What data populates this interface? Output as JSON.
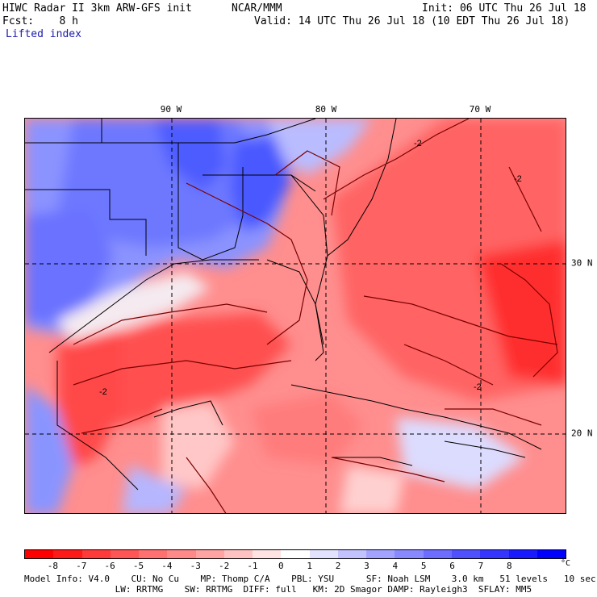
{
  "header": {
    "title_left": "HIWC Radar II 3km ARW-GFS init",
    "org": "NCAR/MMM",
    "init": "Init: 06 UTC Thu 26 Jul 18",
    "fcst": "Fcst:    8 h",
    "valid": "Valid: 14 UTC Thu 26 Jul 18 (10 EDT Thu 26 Jul 18)",
    "field": "Lifted index"
  },
  "map": {
    "longitude_labels": [
      "90 W",
      "80 W",
      "70 W"
    ],
    "latitude_labels": [
      "30 N",
      "20 N"
    ],
    "contour_labels": [
      "-2",
      "-2",
      "-2",
      "-2"
    ]
  },
  "colorbar": {
    "labels": [
      "-8",
      "-7",
      "-6",
      "-5",
      "-4",
      "-3",
      "-2",
      "-1",
      "0",
      "1",
      "2",
      "3",
      "4",
      "5",
      "6",
      "7",
      "8"
    ],
    "unit": "°C",
    "colors": [
      "#ff0000",
      "#ff1a1a",
      "#ff3a3a",
      "#ff5555",
      "#ff7070",
      "#ff8888",
      "#ffa3a3",
      "#ffc2c2",
      "#ffe2e2",
      "#ffffff",
      "#e2e2ff",
      "#c2c2ff",
      "#a3a3ff",
      "#8888ff",
      "#6c6cff",
      "#5050ff",
      "#3535ff",
      "#1a1aff",
      "#0000ff"
    ]
  },
  "footer": {
    "line1": "Model Info: V4.0    CU: No Cu    MP: Thomp C/A    PBL: YSU      SF: Noah LSM    3.0 km   51 levels   10 sec",
    "line2": "                 LW: RRTMG    SW: RRTMG  DIFF: full   KM: 2D Smagor DAMP: Rayleigh3  SFLAY: MM5"
  }
}
